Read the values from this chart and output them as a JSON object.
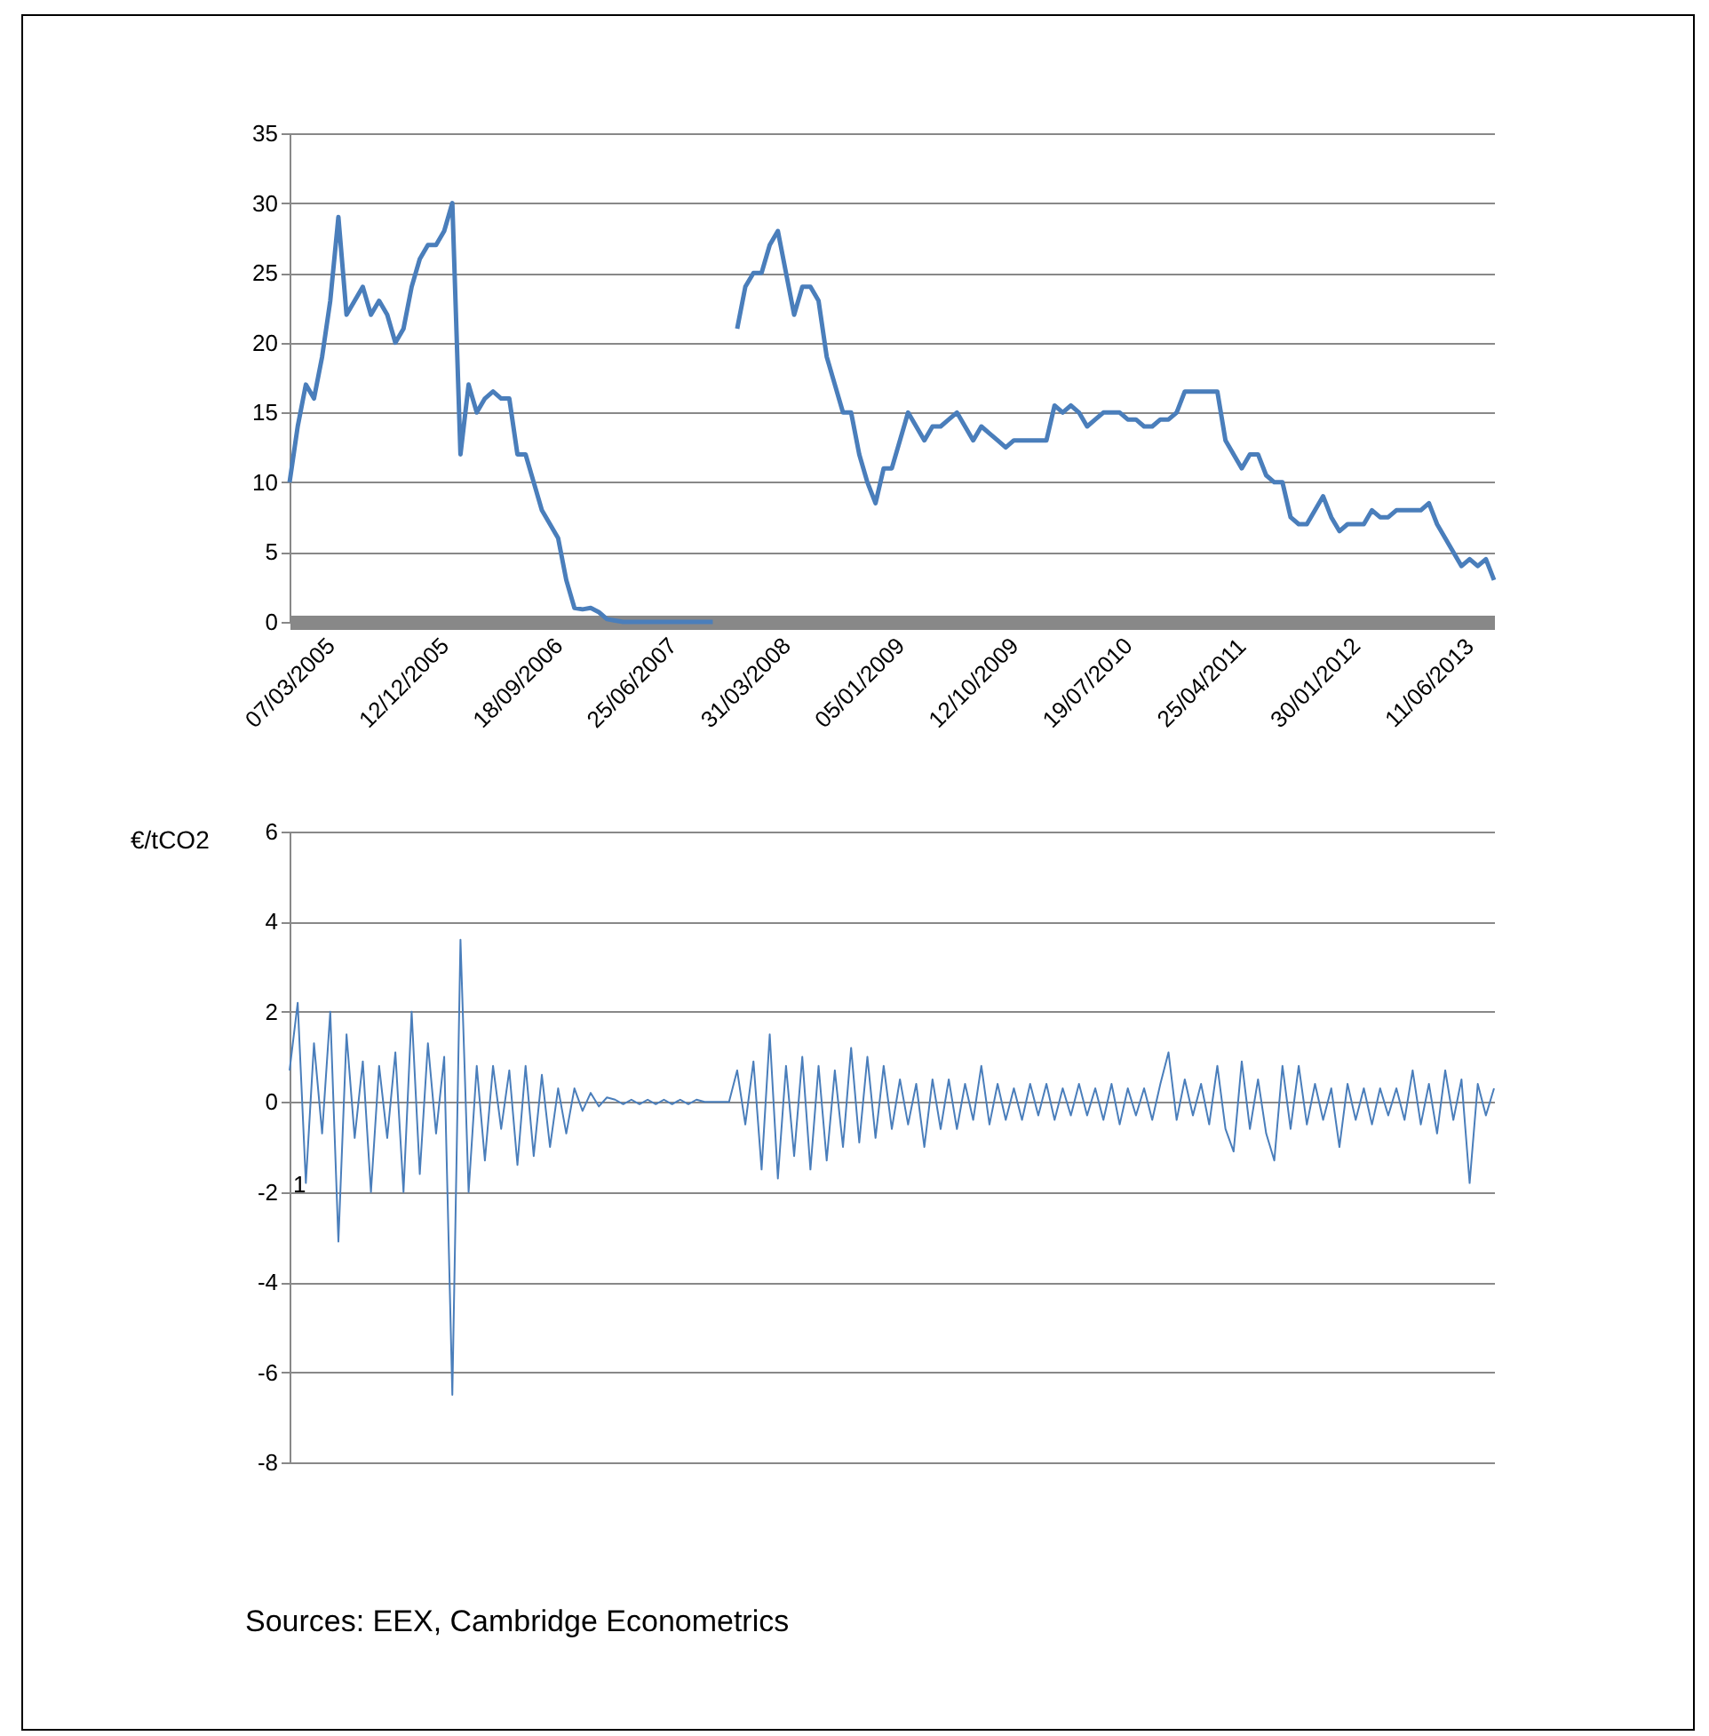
{
  "chart_data": [
    {
      "type": "line",
      "categories": [
        "07/03/2005",
        null,
        null,
        null,
        null,
        null,
        null,
        null,
        null,
        null,
        null,
        null,
        null,
        null,
        "12/12/2005",
        null,
        null,
        null,
        null,
        null,
        null,
        null,
        null,
        null,
        null,
        null,
        null,
        null,
        "18/09/2006",
        null,
        null,
        null,
        null,
        null,
        null,
        null,
        null,
        null,
        null,
        null,
        null,
        null,
        "25/06/2007",
        null,
        null,
        null,
        null,
        null,
        null,
        null,
        null,
        null,
        null,
        null,
        null,
        null,
        "31/03/2008",
        null,
        null,
        null,
        null,
        null,
        null,
        null,
        null,
        null,
        null,
        null,
        null,
        null,
        "05/01/2009",
        null,
        null,
        null,
        null,
        null,
        null,
        null,
        null,
        null,
        null,
        null,
        null,
        null,
        "12/10/2009",
        null,
        null,
        null,
        null,
        null,
        null,
        null,
        null,
        null,
        null,
        null,
        null,
        null,
        "19/07/2010",
        null,
        null,
        null,
        null,
        null,
        null,
        null,
        null,
        null,
        null,
        null,
        null,
        null,
        "25/04/2011",
        null,
        null,
        null,
        null,
        null,
        null,
        null,
        null,
        null,
        null,
        null,
        null,
        null,
        "30/01/2012",
        null,
        null,
        null,
        null,
        null,
        null,
        null,
        null,
        null,
        null,
        null,
        null,
        null,
        "11/06/2013",
        null,
        null,
        null,
        null,
        null,
        null,
        null,
        null
      ],
      "series": [
        {
          "color": "#4a7ebb",
          "values": [
            10,
            14,
            17,
            16,
            19,
            23,
            29,
            22,
            23,
            24,
            22,
            23,
            22,
            20,
            21,
            24,
            26,
            27,
            27,
            28,
            30,
            12,
            17,
            15,
            16,
            16.5,
            16,
            16,
            12,
            12,
            10,
            8,
            7,
            6,
            3,
            1,
            0.9,
            1,
            0.7,
            0.2,
            0.1,
            0,
            0,
            0,
            0,
            0,
            0,
            0,
            0,
            0,
            0,
            0,
            0,
            null,
            null,
            21,
            24,
            25,
            25,
            27,
            28,
            25,
            22,
            24,
            24,
            23,
            19,
            17,
            15,
            15,
            12,
            10,
            8.5,
            11,
            11,
            13,
            15,
            14,
            13,
            14,
            14,
            14.5,
            15,
            14,
            13,
            14,
            13.5,
            13,
            12.5,
            13,
            13,
            13,
            13,
            13,
            15.5,
            15,
            15.5,
            15,
            14,
            14.5,
            15,
            15,
            15,
            14.5,
            14.5,
            14,
            14,
            14.5,
            14.5,
            15,
            16.5,
            16.5,
            16.5,
            16.5,
            16.5,
            13,
            12,
            11,
            12,
            12,
            10.5,
            10,
            10,
            7.5,
            7,
            7,
            8,
            9,
            7.5,
            6.5,
            7,
            7,
            7,
            8,
            7.5,
            7.5,
            8,
            8,
            8,
            8,
            8.5,
            7,
            6,
            5,
            4,
            4.5,
            4,
            4.5,
            3
          ]
        }
      ],
      "ylim": [
        0,
        35
      ],
      "yticks": [
        0,
        5,
        10,
        15,
        20,
        25,
        30,
        35
      ],
      "grid": "y"
    },
    {
      "type": "line",
      "categories": [
        null,
        null,
        null,
        null,
        null,
        null,
        null,
        null,
        null,
        null,
        null,
        null,
        null,
        null,
        null,
        null,
        null,
        null,
        null,
        null,
        null,
        null,
        null,
        null,
        null,
        null,
        null,
        null,
        null,
        null,
        null,
        null,
        null,
        null,
        null,
        null,
        null,
        null,
        null,
        null,
        null,
        null,
        null,
        null,
        null,
        null,
        null,
        null,
        null,
        null,
        null,
        null,
        null,
        null,
        null,
        null,
        null,
        null,
        null,
        null,
        null,
        null,
        null,
        null,
        null,
        null,
        null,
        null,
        null,
        null,
        null,
        null,
        null,
        null,
        null,
        null,
        null,
        null,
        null,
        null,
        null,
        null,
        null,
        null,
        null,
        null,
        null,
        null,
        null,
        null,
        null,
        null,
        null,
        null,
        null,
        null,
        null,
        null,
        null,
        null,
        null,
        null,
        null,
        null,
        null,
        null,
        null,
        null,
        null,
        null,
        null,
        null,
        null,
        null,
        null,
        null,
        null,
        null,
        null,
        null,
        null,
        null,
        null,
        null,
        null,
        null,
        null,
        null,
        null,
        null,
        null,
        null,
        null,
        null,
        null,
        null,
        null,
        null,
        null,
        null,
        null,
        null,
        null,
        null,
        null,
        null,
        null,
        null,
        null
      ],
      "series": [
        {
          "color": "#4a7ebb",
          "values": [
            0.7,
            2.2,
            -1.8,
            1.3,
            -0.7,
            2.0,
            -3.1,
            1.5,
            -0.8,
            0.9,
            -2.0,
            0.8,
            -0.8,
            1.1,
            -2.0,
            2.0,
            -1.6,
            1.3,
            -0.7,
            1.0,
            -6.5,
            3.6,
            -2.0,
            0.8,
            -1.3,
            0.8,
            -0.6,
            0.7,
            -1.4,
            0.8,
            -1.2,
            0.6,
            -1.0,
            0.3,
            -0.7,
            0.3,
            -0.2,
            0.2,
            -0.1,
            0.1,
            0.05,
            -0.05,
            0.05,
            -0.05,
            0.05,
            -0.05,
            0.05,
            -0.05,
            0.05,
            -0.05,
            0.05,
            0,
            0,
            0,
            0,
            0.7,
            -0.5,
            0.9,
            -1.5,
            1.5,
            -1.7,
            0.8,
            -1.2,
            1.0,
            -1.5,
            0.8,
            -1.3,
            0.7,
            -1.0,
            1.2,
            -0.9,
            1.0,
            -0.8,
            0.8,
            -0.6,
            0.5,
            -0.5,
            0.4,
            -1.0,
            0.5,
            -0.6,
            0.5,
            -0.6,
            0.4,
            -0.4,
            0.8,
            -0.5,
            0.4,
            -0.4,
            0.3,
            -0.4,
            0.4,
            -0.3,
            0.4,
            -0.4,
            0.3,
            -0.3,
            0.4,
            -0.3,
            0.3,
            -0.4,
            0.4,
            -0.5,
            0.3,
            -0.3,
            0.3,
            -0.4,
            0.4,
            1.1,
            -0.4,
            0.5,
            -0.3,
            0.4,
            -0.5,
            0.8,
            -0.6,
            -1.1,
            0.9,
            -0.6,
            0.5,
            -0.7,
            -1.3,
            0.8,
            -0.6,
            0.8,
            -0.5,
            0.4,
            -0.4,
            0.3,
            -1.0,
            0.4,
            -0.4,
            0.3,
            -0.5,
            0.3,
            -0.3,
            0.3,
            -0.4,
            0.7,
            -0.5,
            0.4,
            -0.7,
            0.7,
            -0.4,
            0.5,
            -1.8,
            0.4,
            -0.3,
            0.3
          ]
        }
      ],
      "ylim": [
        -8,
        6
      ],
      "yticks": [
        -8,
        -6,
        -4,
        -2,
        0,
        2,
        4,
        6
      ],
      "grid": "y",
      "tick_labels": "y",
      "ylabel": "€/tCO2",
      "annotations": [
        "1",
        "Sources: EEX, Cambridge Econometrics"
      ]
    }
  ]
}
